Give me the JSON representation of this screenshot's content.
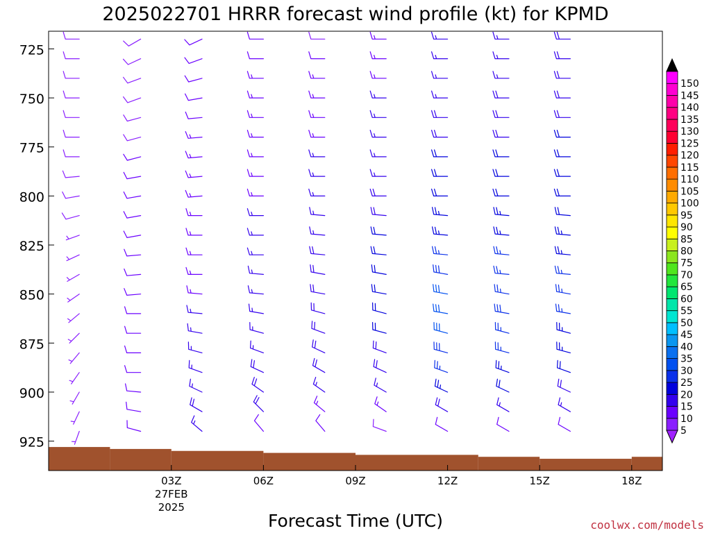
{
  "chart_data": {
    "type": "wind_barb_profile",
    "title": "2025022701 HRRR forecast wind profile (kt) for KPMD",
    "xlabel": "Forecast Time (UTC)",
    "ylabel": "",
    "watermark": "coolwx.com/models",
    "pressure_range": [
      940,
      716
    ],
    "time_range": [
      -1,
      19
    ],
    "time_ticks": [
      {
        "hour": 3,
        "label": "03Z",
        "sublabel1": "27FEB",
        "sublabel2": "2025"
      },
      {
        "hour": 6,
        "label": "06Z"
      },
      {
        "hour": 9,
        "label": "09Z"
      },
      {
        "hour": 12,
        "label": "12Z"
      },
      {
        "hour": 15,
        "label": "15Z"
      },
      {
        "hour": 18,
        "label": "18Z"
      }
    ],
    "pressure_ticks": [
      725,
      750,
      775,
      800,
      825,
      850,
      875,
      900,
      925
    ],
    "barb_levels": [
      720,
      730,
      740,
      750,
      760,
      770,
      780,
      790,
      800,
      810,
      820,
      830,
      840,
      850,
      860,
      870,
      880,
      890,
      900,
      910,
      920
    ],
    "barb_columns": [
      {
        "hour": 0,
        "speeds": [
          9,
          8,
          9,
          9,
          9,
          9,
          9,
          8,
          8,
          8,
          7,
          7,
          6,
          6,
          6,
          6,
          6,
          6,
          6,
          6,
          6
        ],
        "directions": [
          270,
          270,
          270,
          270,
          270,
          270,
          270,
          265,
          260,
          255,
          250,
          245,
          240,
          235,
          230,
          225,
          220,
          215,
          210,
          205,
          200
        ]
      },
      {
        "hour": 2,
        "speeds": [
          8,
          8,
          8,
          8,
          8,
          9,
          10,
          10,
          10,
          10,
          11,
          11,
          11,
          11,
          11,
          11,
          12,
          12,
          12,
          12,
          12
        ],
        "directions": [
          240,
          245,
          250,
          250,
          255,
          255,
          255,
          260,
          260,
          260,
          260,
          265,
          265,
          265,
          270,
          270,
          270,
          270,
          275,
          280,
          285
        ]
      },
      {
        "hour": 4,
        "speeds": [
          10,
          10,
          12,
          12,
          12,
          13,
          13,
          13,
          14,
          14,
          14,
          14,
          14,
          14,
          15,
          15,
          15,
          16,
          17,
          18,
          17
        ],
        "directions": [
          245,
          250,
          255,
          260,
          265,
          265,
          265,
          265,
          265,
          270,
          270,
          270,
          270,
          275,
          275,
          280,
          285,
          290,
          295,
          300,
          310
        ]
      },
      {
        "hour": 6,
        "speeds": [
          12,
          12,
          13,
          13,
          13,
          14,
          14,
          14,
          14,
          15,
          15,
          15,
          15,
          16,
          16,
          16,
          17,
          18,
          19,
          18,
          12
        ],
        "directions": [
          270,
          270,
          270,
          270,
          270,
          270,
          270,
          270,
          270,
          270,
          270,
          270,
          275,
          275,
          280,
          285,
          290,
          295,
          305,
          315,
          320
        ]
      },
      {
        "hour": 8,
        "speeds": [
          9,
          12,
          13,
          13,
          14,
          14,
          15,
          15,
          16,
          16,
          17,
          18,
          18,
          19,
          19,
          19,
          19,
          18,
          16,
          14,
          11
        ],
        "directions": [
          270,
          270,
          270,
          270,
          270,
          270,
          270,
          270,
          270,
          275,
          275,
          275,
          280,
          280,
          285,
          290,
          295,
          300,
          305,
          310,
          320
        ]
      },
      {
        "hour": 10,
        "speeds": [
          13,
          14,
          14,
          15,
          15,
          16,
          16,
          17,
          18,
          19,
          20,
          21,
          22,
          22,
          21,
          20,
          19,
          18,
          16,
          13,
          9
        ],
        "directions": [
          270,
          270,
          270,
          270,
          270,
          270,
          270,
          270,
          270,
          275,
          275,
          275,
          280,
          280,
          285,
          285,
          290,
          295,
          300,
          305,
          290
        ]
      },
      {
        "hour": 12,
        "speeds": [
          15,
          16,
          16,
          17,
          18,
          19,
          20,
          21,
          22,
          23,
          24,
          26,
          28,
          30,
          31,
          30,
          28,
          26,
          23,
          19,
          12
        ],
        "directions": [
          270,
          270,
          270,
          270,
          270,
          270,
          270,
          270,
          270,
          275,
          275,
          275,
          280,
          280,
          280,
          285,
          285,
          290,
          295,
          300,
          300
        ]
      },
      {
        "hour": 14,
        "speeds": [
          16,
          16,
          17,
          18,
          18,
          19,
          20,
          21,
          22,
          23,
          24,
          25,
          26,
          27,
          28,
          27,
          26,
          24,
          21,
          17,
          12
        ],
        "directions": [
          270,
          270,
          270,
          270,
          270,
          270,
          270,
          270,
          270,
          275,
          275,
          275,
          275,
          280,
          280,
          285,
          285,
          290,
          295,
          300,
          300
        ]
      },
      {
        "hour": 16,
        "speeds": [
          18,
          18,
          18,
          19,
          19,
          20,
          20,
          21,
          21,
          22,
          23,
          24,
          25,
          25,
          25,
          24,
          23,
          21,
          19,
          16,
          12
        ],
        "directions": [
          270,
          270,
          270,
          270,
          270,
          270,
          270,
          270,
          270,
          275,
          275,
          275,
          275,
          280,
          280,
          285,
          285,
          290,
          295,
          300,
          300
        ]
      }
    ],
    "terrain_steps": [
      {
        "from_hour": -1,
        "to_hour": 1,
        "pressure": 928
      },
      {
        "from_hour": 1,
        "to_hour": 3,
        "pressure": 929
      },
      {
        "from_hour": 3,
        "to_hour": 6,
        "pressure": 930
      },
      {
        "from_hour": 6,
        "to_hour": 9,
        "pressure": 931
      },
      {
        "from_hour": 9,
        "to_hour": 13,
        "pressure": 932
      },
      {
        "from_hour": 13,
        "to_hour": 15,
        "pressure": 933
      },
      {
        "from_hour": 15,
        "to_hour": 18,
        "pressure": 934
      },
      {
        "from_hour": 18,
        "to_hour": 19,
        "pressure": 933
      }
    ],
    "terrain_color": "#a0522d",
    "colorbar": {
      "labels": [
        "5",
        "10",
        "15",
        "20",
        "25",
        "30",
        "35",
        "40",
        "45",
        "50",
        "55",
        "60",
        "65",
        "70",
        "75",
        "80",
        "85",
        "90",
        "95",
        "100",
        "105",
        "110",
        "115",
        "120",
        "125",
        "130",
        "135",
        "140",
        "145",
        "150"
      ],
      "colors": [
        "#8a1fff",
        "#6a00ff",
        "#3300ee",
        "#0000dd",
        "#0a30ea",
        "#0050f0",
        "#0a70f0",
        "#0a96f0",
        "#00bfff",
        "#00e6d2",
        "#00e6aa",
        "#00e670",
        "#22e63c",
        "#50e61e",
        "#8ce61e",
        "#c8f01e",
        "#ffff00",
        "#ffe600",
        "#ffc800",
        "#ffaa00",
        "#ff8c00",
        "#ff6e00",
        "#ff4600",
        "#ff1e00",
        "#ff0032",
        "#ff005a",
        "#ff0082",
        "#ff00aa",
        "#ff00d2",
        "#ff00ff"
      ],
      "under_color": "#a020ff",
      "over_color": "#000000"
    }
  }
}
